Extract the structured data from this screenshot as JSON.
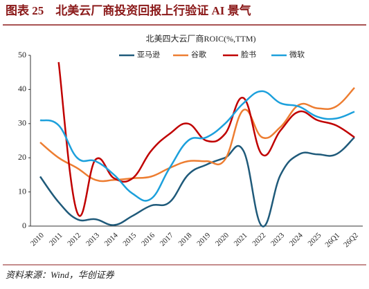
{
  "header": "图表 25　北美云厂商投资回报上行验证 AI 景气",
  "source": "资料来源：Wind，华创证券",
  "chart_data": {
    "type": "line",
    "title": "北美四大云厂商ROIC(%,TTM)",
    "categories": [
      "2010",
      "2011",
      "2012",
      "2013",
      "2014",
      "2015",
      "2016",
      "2017",
      "2018",
      "2019",
      "2020",
      "2021",
      "2022",
      "2023",
      "2024",
      "2025",
      "26Q1",
      "26Q2"
    ],
    "series": [
      {
        "name": "亚马逊",
        "color": "#1f5a7a",
        "values": [
          14.5,
          7,
          2,
          2,
          0.3,
          3,
          6,
          7,
          15,
          18,
          20,
          22,
          0,
          15,
          21,
          21,
          21,
          26
        ]
      },
      {
        "name": "谷歌",
        "color": "#ed7d31",
        "values": [
          24.5,
          20,
          17,
          13.5,
          13.5,
          14,
          14.5,
          17,
          19,
          19,
          19.5,
          34,
          26,
          29,
          35.5,
          34.5,
          35,
          40.5
        ]
      },
      {
        "name": "脸书",
        "color": "#c00000",
        "values": [
          null,
          48,
          4,
          19.5,
          14,
          14,
          22,
          27,
          30,
          25,
          27,
          37.5,
          21,
          28,
          33.5,
          31,
          29.5,
          26
        ]
      },
      {
        "name": "微软",
        "color": "#1ca0dc",
        "values": [
          31,
          29.5,
          20,
          19,
          15,
          9.5,
          8,
          17,
          25,
          26,
          30,
          36,
          39.5,
          36,
          35,
          32,
          31.5,
          33.5
        ]
      }
    ],
    "ylim": [
      0,
      50
    ],
    "yticks": [
      0,
      10,
      20,
      30,
      40,
      50
    ],
    "grid": false,
    "legend": "top"
  }
}
